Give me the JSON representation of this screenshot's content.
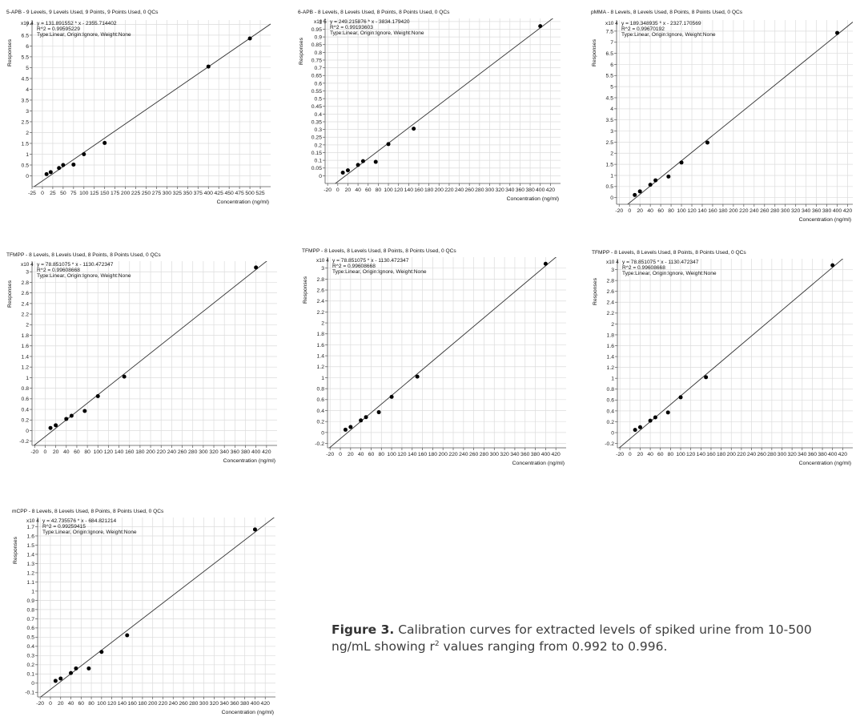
{
  "caption": {
    "label": "Figure 3.",
    "text_before": "Calibration curves for extracted levels of spiked urine from 10-500 ng/mL showing r",
    "superscript": "2",
    "text_after": " values ranging from 0.992 to 0.996."
  },
  "chart_data": [
    {
      "type": "scatter",
      "title": "5-APB - 9 Levels, 9 Levels Used, 9 Points, 9 Points Used, 0 QCs",
      "equation": "y = 131.891552 * x - 2355.714402",
      "r2": "R^2 = 0.99595229",
      "fit_type": "Type:Linear, Origin:Ignore, Weight:None",
      "xlabel": "Concentration (ng/ml)",
      "ylabel": "Responses",
      "y_multiplier": "x10 4",
      "xlim": [
        -25,
        550
      ],
      "ylim": [
        -0.5,
        7.2
      ],
      "xticks": [
        -25,
        0,
        25,
        50,
        75,
        100,
        125,
        150,
        175,
        200,
        225,
        250,
        275,
        300,
        325,
        350,
        375,
        400,
        425,
        450,
        475,
        500,
        525
      ],
      "yticks": [
        0,
        0.5,
        1,
        1.5,
        2,
        2.5,
        3,
        3.5,
        4,
        4.5,
        5,
        5.5,
        6,
        6.5,
        7
      ],
      "fit": {
        "slope": 131.891552,
        "intercept": -2355.714402,
        "scale": 10000
      },
      "points": [
        [
          10,
          0.08
        ],
        [
          20,
          0.17
        ],
        [
          40,
          0.36
        ],
        [
          50,
          0.5
        ],
        [
          75,
          0.52
        ],
        [
          100,
          1.0
        ],
        [
          150,
          1.52
        ],
        [
          400,
          5.05
        ],
        [
          500,
          6.35
        ]
      ]
    },
    {
      "type": "scatter",
      "title": "6-APB - 8 Levels, 8 Levels Used, 8 Points, 8 Points Used, 0 QCs",
      "equation": "y = 249.215876 * x - 3834.179420",
      "r2": "R^2 = 0.99193603",
      "fit_type": "Type:Linear, Origin:Ignore, Weight:None",
      "xlabel": "Concentration (ng/ml)",
      "ylabel": "Responses",
      "y_multiplier": "x10 5",
      "xlim": [
        -25,
        440
      ],
      "ylim": [
        -0.05,
        1.02
      ],
      "xticks": [
        -20,
        0,
        20,
        40,
        60,
        80,
        100,
        120,
        140,
        160,
        180,
        200,
        220,
        240,
        260,
        280,
        300,
        320,
        340,
        360,
        380,
        400,
        420
      ],
      "yticks": [
        0,
        0.05,
        0.1,
        0.15,
        0.2,
        0.25,
        0.3,
        0.35,
        0.4,
        0.45,
        0.5,
        0.55,
        0.6,
        0.65,
        0.7,
        0.75,
        0.8,
        0.85,
        0.9,
        0.95,
        1
      ],
      "fit": {
        "slope": 249.215876,
        "intercept": -3834.17942,
        "scale": 100000
      },
      "points": [
        [
          10,
          0.02
        ],
        [
          20,
          0.035
        ],
        [
          40,
          0.07
        ],
        [
          50,
          0.095
        ],
        [
          75,
          0.09
        ],
        [
          100,
          0.205
        ],
        [
          150,
          0.305
        ],
        [
          400,
          0.97
        ]
      ]
    },
    {
      "type": "scatter",
      "title": "pMMA - 8 Levels, 8 Levels Used, 8 Points, 8 Points Used, 0 QCs",
      "equation": "y = 189.348935 * x - 2327.170569",
      "r2": "R^2 = 0.99670192",
      "fit_type": "Type:Linear, Origin:Ignore, Weight:None",
      "xlabel": "Concentration (ng/ml)",
      "ylabel": "Responses",
      "y_multiplier": "x10 4",
      "xlim": [
        -25,
        430
      ],
      "ylim": [
        -0.3,
        8.0
      ],
      "xticks": [
        -20,
        0,
        20,
        40,
        60,
        80,
        100,
        120,
        140,
        160,
        180,
        200,
        220,
        240,
        260,
        280,
        300,
        320,
        340,
        360,
        380,
        400,
        420
      ],
      "yticks": [
        0,
        0.5,
        1,
        1.5,
        2,
        2.5,
        3,
        3.5,
        4,
        4.5,
        5,
        5.5,
        6,
        6.5,
        7,
        7.5
      ],
      "fit": {
        "slope": 189.348935,
        "intercept": -2327.170569,
        "scale": 10000
      },
      "points": [
        [
          10,
          0.12
        ],
        [
          20,
          0.28
        ],
        [
          40,
          0.58
        ],
        [
          50,
          0.78
        ],
        [
          75,
          0.95
        ],
        [
          100,
          1.58
        ],
        [
          150,
          2.48
        ],
        [
          400,
          7.42
        ]
      ]
    },
    {
      "type": "scatter",
      "title": "TFMPP - 8 Levels, 8 Levels Used, 8 Points, 8 Points Used, 0 QCs",
      "equation": "y = 78.851075 * x - 1130.472347",
      "r2": "R^2 = 0.99608668",
      "fit_type": "Type:Linear, Origin:Ignore, Weight:None",
      "xlabel": "Concentration (ng/ml)",
      "ylabel": "Responses",
      "y_multiplier": "x10 4",
      "xlim": [
        -25,
        440
      ],
      "ylim": [
        -0.28,
        3.2
      ],
      "xticks": [
        -20,
        0,
        20,
        40,
        60,
        80,
        100,
        120,
        140,
        160,
        180,
        200,
        220,
        240,
        260,
        280,
        300,
        320,
        340,
        360,
        380,
        400,
        420
      ],
      "yticks": [
        -0.2,
        0,
        0.2,
        0.4,
        0.6,
        0.8,
        1,
        1.2,
        1.4,
        1.6,
        1.8,
        2,
        2.2,
        2.4,
        2.6,
        2.8,
        3
      ],
      "fit": {
        "slope": 78.851075,
        "intercept": -1130.472347,
        "scale": 10000
      },
      "points": [
        [
          10,
          0.05
        ],
        [
          20,
          0.1
        ],
        [
          40,
          0.22
        ],
        [
          50,
          0.28
        ],
        [
          75,
          0.37
        ],
        [
          100,
          0.65
        ],
        [
          150,
          1.02
        ],
        [
          400,
          3.08
        ]
      ]
    },
    {
      "type": "scatter",
      "title": "TFMPP - 8 Levels, 8 Levels Used, 8 Points, 8 Points Used, 0 QCs",
      "equation": "y = 78.851075 * x - 1130.472347",
      "r2": "R^2 = 0.99608668",
      "fit_type": "Type:Linear, Origin:Ignore, Weight:None",
      "xlabel": "Concentration (ng/ml)",
      "ylabel": "Responses",
      "y_multiplier": "x10 4",
      "xlim": [
        -25,
        440
      ],
      "ylim": [
        -0.28,
        3.2
      ],
      "xticks": [
        -20,
        0,
        20,
        40,
        60,
        80,
        100,
        120,
        140,
        160,
        180,
        200,
        220,
        240,
        260,
        280,
        300,
        320,
        340,
        360,
        380,
        400,
        420
      ],
      "yticks": [
        -0.2,
        0,
        0.2,
        0.4,
        0.6,
        0.8,
        1,
        1.2,
        1.4,
        1.6,
        1.8,
        2,
        2.2,
        2.4,
        2.6,
        2.8,
        3
      ],
      "fit": {
        "slope": 78.851075,
        "intercept": -1130.472347,
        "scale": 10000
      },
      "points": [
        [
          10,
          0.05
        ],
        [
          20,
          0.1
        ],
        [
          40,
          0.22
        ],
        [
          50,
          0.28
        ],
        [
          75,
          0.37
        ],
        [
          100,
          0.65
        ],
        [
          150,
          1.02
        ],
        [
          400,
          3.08
        ]
      ]
    },
    {
      "type": "scatter",
      "title": "TFMPP - 8 Levels, 8 Levels Used, 8 Points, 8 Points Used, 0 QCs",
      "equation": "y = 78.851075 * x - 1130.472347",
      "r2": "R^2 = 0.99608668",
      "fit_type": "Type:Linear, Origin:Ignore, Weight:None",
      "xlabel": "Concentration (ng/ml)",
      "ylabel": "Responses",
      "y_multiplier": "x10 4",
      "xlim": [
        -25,
        440
      ],
      "ylim": [
        -0.28,
        3.2
      ],
      "xticks": [
        -20,
        0,
        20,
        40,
        60,
        80,
        100,
        120,
        140,
        160,
        180,
        200,
        220,
        240,
        260,
        280,
        300,
        320,
        340,
        360,
        380,
        400,
        420
      ],
      "yticks": [
        -0.2,
        0,
        0.2,
        0.4,
        0.6,
        0.8,
        1,
        1.2,
        1.4,
        1.6,
        1.8,
        2,
        2.2,
        2.4,
        2.6,
        2.8,
        3
      ],
      "fit": {
        "slope": 78.851075,
        "intercept": -1130.472347,
        "scale": 10000
      },
      "points": [
        [
          10,
          0.05
        ],
        [
          20,
          0.1
        ],
        [
          40,
          0.22
        ],
        [
          50,
          0.28
        ],
        [
          75,
          0.37
        ],
        [
          100,
          0.65
        ],
        [
          150,
          1.02
        ],
        [
          400,
          3.08
        ]
      ]
    },
    {
      "type": "scatter",
      "title": "mCPP - 8 Levels, 8 Levels Used, 8 Points, 8 Points Used, 0 QCs",
      "equation": "y = 42.735576 * x - 684.821214",
      "r2": "R^2 = 0.99259415",
      "fit_type": "Type:Linear, Origin:Ignore, Weight:None",
      "xlabel": "Concentration (ng/ml)",
      "ylabel": "Responses",
      "y_multiplier": "x10 4",
      "xlim": [
        -25,
        440
      ],
      "ylim": [
        -0.15,
        1.8
      ],
      "xticks": [
        -20,
        0,
        20,
        40,
        60,
        80,
        100,
        120,
        140,
        160,
        180,
        200,
        220,
        240,
        260,
        280,
        300,
        320,
        340,
        360,
        380,
        400,
        420
      ],
      "yticks": [
        -0.1,
        0,
        0.1,
        0.2,
        0.3,
        0.4,
        0.5,
        0.6,
        0.7,
        0.8,
        0.9,
        1,
        1.1,
        1.2,
        1.3,
        1.4,
        1.5,
        1.6,
        1.7
      ],
      "fit": {
        "slope": 42.735576,
        "intercept": -684.821214,
        "scale": 10000
      },
      "points": [
        [
          10,
          0.025
        ],
        [
          20,
          0.05
        ],
        [
          40,
          0.11
        ],
        [
          50,
          0.16
        ],
        [
          75,
          0.16
        ],
        [
          100,
          0.34
        ],
        [
          150,
          0.52
        ],
        [
          400,
          1.67
        ]
      ]
    }
  ]
}
